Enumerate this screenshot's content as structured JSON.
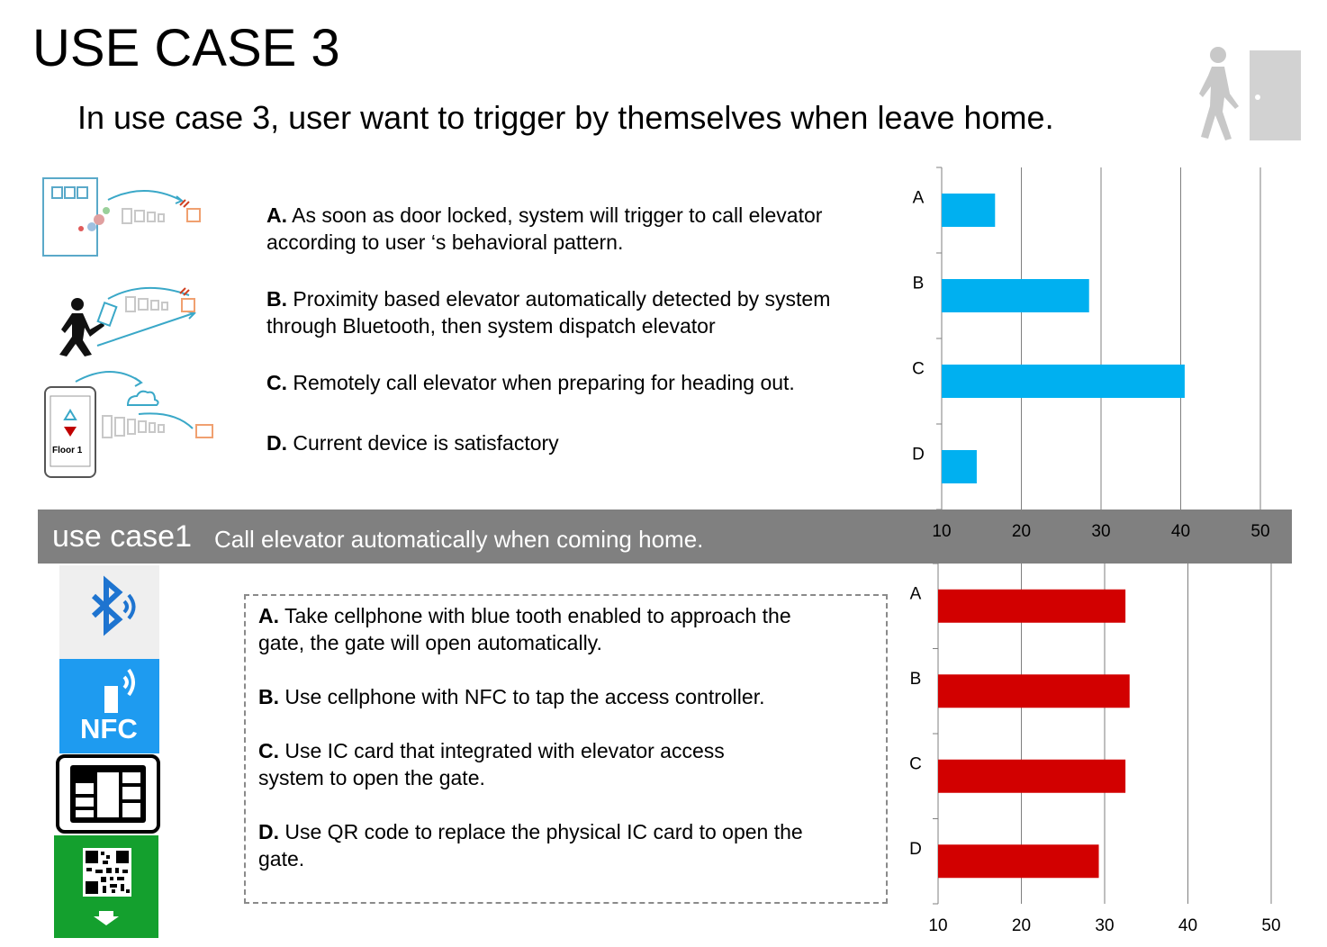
{
  "header": {
    "title": "USE CASE 3",
    "subtitle": "In use case 3, user want to trigger by themselves when leave home."
  },
  "case3": {
    "options": [
      {
        "letter": "A.",
        "lines": [
          "As soon as door locked, system will trigger to call elevator",
          "according to user ‘s behavioral pattern."
        ]
      },
      {
        "letter": "B.",
        "lines": [
          "Proximity  based  elevator automatically detected by system",
          "through Bluetooth, then system dispatch elevator"
        ]
      },
      {
        "letter": "C.",
        "lines": [
          "Remotely call elevator when preparing for heading out."
        ]
      },
      {
        "letter": "D.",
        "lines": [
          "Current device is satisfactory"
        ]
      }
    ],
    "phone_label": "Floor 1"
  },
  "banner": {
    "title": "use case1",
    "text": "Call elevator automatically when coming home."
  },
  "case1": {
    "options": [
      {
        "letter": "A.",
        "lines": [
          "Take cellphone with blue tooth enabled to approach the",
          "gate, the gate will open automatically."
        ]
      },
      {
        "letter": "B.",
        "lines": [
          "Use cellphone with NFC to tap the access controller."
        ]
      },
      {
        "letter": "C.",
        "lines": [
          "Use IC card that integrated with elevator access",
          "system to open the gate."
        ]
      },
      {
        "letter": "D.",
        "lines": [
          "Use QR code to replace the physical IC card to open the",
          "gate."
        ]
      }
    ],
    "icons": {
      "bluetooth": "bluetooth-icon",
      "nfc": "NFC",
      "ic_card": "sim-card-icon",
      "qr": "qr-code-icon"
    }
  },
  "chart_data": [
    {
      "type": "bar",
      "orientation": "horizontal",
      "categories": [
        "A",
        "B",
        "C",
        "D"
      ],
      "values": [
        16.7,
        28.5,
        40.5,
        14.4
      ],
      "xlim": [
        10,
        50
      ],
      "xticks": [
        10,
        20,
        30,
        40,
        50
      ],
      "grid": true,
      "color": "#00b0f0"
    },
    {
      "type": "bar",
      "orientation": "horizontal",
      "categories": [
        "A",
        "B",
        "C",
        "D"
      ],
      "values": [
        32.5,
        33.0,
        32.5,
        29.3
      ],
      "xlim": [
        10,
        50
      ],
      "xticks": [
        10,
        20,
        30,
        40,
        50
      ],
      "grid": true,
      "color": "#d20000"
    }
  ]
}
